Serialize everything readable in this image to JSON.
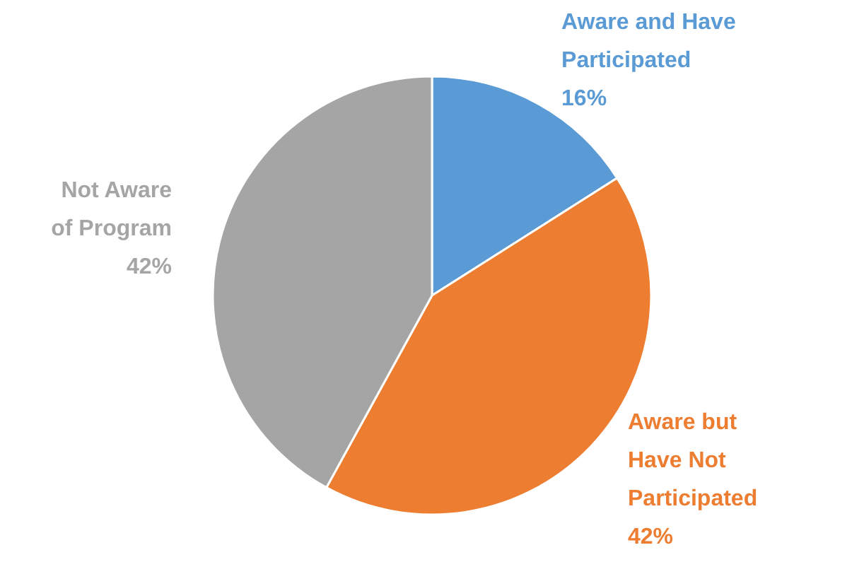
{
  "chart_data": {
    "type": "pie",
    "categories": [
      "Aware and Have\nParticipated",
      "Aware but\nHave Not\nParticipated",
      "Not Aware\nof Program"
    ],
    "values": [
      16,
      42,
      42
    ],
    "value_labels": [
      "16%",
      "42%",
      "42%"
    ],
    "colors": [
      "#5b9bd5",
      "#ed7d31",
      "#a5a5a5"
    ]
  }
}
